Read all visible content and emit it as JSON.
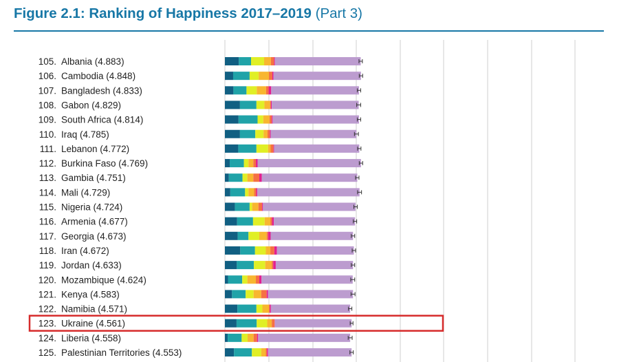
{
  "figure": {
    "title": "Figure 2.1: Ranking of Happiness 2017–2019",
    "part": "(Part 3)"
  },
  "colors": {
    "title": "#1777a6",
    "highlight_box": "#d62b2b",
    "grid": "#cfcfcf",
    "error_bar": "#333333",
    "segments": [
      "#115f82",
      "#20a3a8",
      "#e0ef26",
      "#f8b630",
      "#f57143",
      "#e2208f",
      "#bc9ccf"
    ]
  },
  "chart_data": {
    "type": "bar",
    "stacked": true,
    "orientation": "horizontal",
    "highlight_rank": 123,
    "xlim": [
      0,
      8
    ],
    "grid": true,
    "rows": [
      {
        "rank": "105.",
        "country": "Albania",
        "score": "(4.883)"
      },
      {
        "rank": "106.",
        "country": "Cambodia",
        "score": "(4.848)"
      },
      {
        "rank": "107.",
        "country": "Bangladesh",
        "score": "(4.833)"
      },
      {
        "rank": "108.",
        "country": "Gabon",
        "score": "(4.829)"
      },
      {
        "rank": "109.",
        "country": "South Africa",
        "score": "(4.814)"
      },
      {
        "rank": "110.",
        "country": "Iraq",
        "score": "(4.785)"
      },
      {
        "rank": "111.",
        "country": "Lebanon",
        "score": "(4.772)"
      },
      {
        "rank": "112.",
        "country": "Burkina Faso",
        "score": "(4.769)"
      },
      {
        "rank": "113.",
        "country": "Gambia",
        "score": "(4.751)"
      },
      {
        "rank": "114.",
        "country": "Mali",
        "score": "(4.729)"
      },
      {
        "rank": "115.",
        "country": "Nigeria",
        "score": "(4.724)"
      },
      {
        "rank": "116.",
        "country": "Armenia",
        "score": "(4.677)"
      },
      {
        "rank": "117.",
        "country": "Georgia",
        "score": "(4.673)"
      },
      {
        "rank": "118.",
        "country": "Iran",
        "score": "(4.672)"
      },
      {
        "rank": "119.",
        "country": "Jordan",
        "score": "(4.633)"
      },
      {
        "rank": "120.",
        "country": "Mozambique",
        "score": "(4.624)"
      },
      {
        "rank": "121.",
        "country": "Kenya",
        "score": "(4.583)"
      },
      {
        "rank": "122.",
        "country": "Namibia",
        "score": "(4.571)"
      },
      {
        "rank": "123.",
        "country": "Ukraine",
        "score": "(4.561)"
      },
      {
        "rank": "124.",
        "country": "Liberia",
        "score": "(4.558)"
      },
      {
        "rank": "125.",
        "country": "Palestinian Territories",
        "score": "(4.553)"
      }
    ],
    "values": [
      [
        0.49,
        0.43,
        0.46,
        0.24,
        0.11,
        0.03,
        3.02
      ],
      [
        0.29,
        0.58,
        0.32,
        0.36,
        0.12,
        0.04,
        3.08
      ],
      [
        0.3,
        0.46,
        0.36,
        0.33,
        0.09,
        0.09,
        3.09
      ],
      [
        0.53,
        0.58,
        0.28,
        0.2,
        0.03,
        0.03,
        3.06
      ],
      [
        0.48,
        0.67,
        0.2,
        0.22,
        0.08,
        0.03,
        3.04
      ],
      [
        0.53,
        0.54,
        0.29,
        0.14,
        0.08,
        0.03,
        3.02
      ],
      [
        0.47,
        0.64,
        0.41,
        0.09,
        0.1,
        0.02,
        3.0
      ],
      [
        0.17,
        0.5,
        0.16,
        0.17,
        0.09,
        0.06,
        3.64
      ],
      [
        0.14,
        0.48,
        0.17,
        0.21,
        0.21,
        0.09,
        3.36
      ],
      [
        0.19,
        0.52,
        0.12,
        0.2,
        0.07,
        0.04,
        3.6
      ],
      [
        0.35,
        0.52,
        0.09,
        0.22,
        0.13,
        0.03,
        3.26
      ],
      [
        0.43,
        0.56,
        0.41,
        0.2,
        0.06,
        0.06,
        2.86
      ],
      [
        0.45,
        0.38,
        0.38,
        0.26,
        0.05,
        0.09,
        2.9
      ],
      [
        0.54,
        0.52,
        0.38,
        0.16,
        0.14,
        0.09,
        2.71
      ],
      [
        0.42,
        0.6,
        0.4,
        0.23,
        0.05,
        0.09,
        2.72
      ],
      [
        0.11,
        0.5,
        0.18,
        0.3,
        0.12,
        0.08,
        3.21
      ],
      [
        0.25,
        0.48,
        0.28,
        0.27,
        0.19,
        0.05,
        2.99
      ],
      [
        0.44,
        0.67,
        0.21,
        0.23,
        0.03,
        0.04,
        2.79
      ],
      [
        0.41,
        0.71,
        0.37,
        0.16,
        0.1,
        0.01,
        2.7
      ],
      [
        0.1,
        0.49,
        0.21,
        0.21,
        0.12,
        0.04,
        3.24
      ],
      [
        0.32,
        0.63,
        0.33,
        0.16,
        0.04,
        0.04,
        2.94
      ]
    ],
    "ci_half_width": [
      0.06,
      0.06,
      0.06,
      0.07,
      0.06,
      0.07,
      0.06,
      0.06,
      0.06,
      0.07,
      0.06,
      0.06,
      0.06,
      0.06,
      0.06,
      0.07,
      0.07,
      0.06,
      0.05,
      0.07,
      0.06
    ]
  }
}
